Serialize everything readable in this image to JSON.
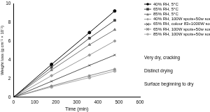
{
  "chart_data": {
    "type": "line",
    "x_label": "Time (min)",
    "y_label": "Weight loss (g cm⁻² × 10⁻²)",
    "x": [
      0,
      180,
      360,
      480
    ],
    "xlim": [
      0,
      600
    ],
    "xticks": [
      0,
      100,
      200,
      300,
      400,
      500,
      600
    ],
    "ylim": [
      0,
      10
    ],
    "yticks": [
      0,
      2,
      4,
      6,
      8,
      10
    ],
    "grid": false,
    "legend": "right",
    "series": [
      {
        "name": "40% RH, 5°C",
        "color": "#000000",
        "marker": "circle",
        "values": [
          0,
          3.5,
          6.9,
          9.2
        ]
      },
      {
        "name": "65% RH, 5°C",
        "color": "#444444",
        "marker": "square",
        "values": [
          0,
          3.2,
          6.3,
          8.2
        ]
      },
      {
        "name": "85% RH, 5°C",
        "color": "#777777",
        "marker": "triangle",
        "values": [
          0,
          2.9,
          5.6,
          7.2
        ]
      },
      {
        "name": "40% RH, 100W spots+50w son",
        "color": "#999999",
        "marker": "diamond",
        "values": [
          0,
          2.3,
          4.5,
          6.0
        ]
      },
      {
        "name": "65% RH, colour 83+1000W son",
        "color": "#555555",
        "marker": "cross",
        "values": [
          0,
          1.7,
          3.4,
          4.5
        ]
      },
      {
        "name": "65% RH, 100W spots+50w son",
        "color": "#888888",
        "marker": "star",
        "values": [
          0,
          1.2,
          2.3,
          3.0
        ]
      },
      {
        "name": "85% RH, 100W spots+50w son",
        "color": "#aaaaaa",
        "marker": "circle",
        "values": [
          0,
          1.1,
          2.1,
          2.8
        ]
      }
    ],
    "annotations": [
      "Very dry, cracking",
      "Distinct drying",
      "Surface beginning to dry"
    ]
  }
}
